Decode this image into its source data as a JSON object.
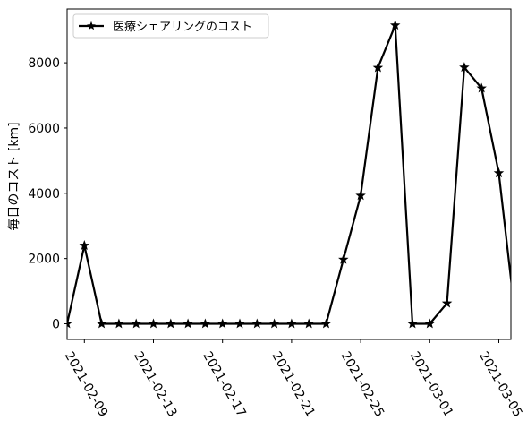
{
  "chart_data": {
    "type": "line",
    "x_start_date": "2021-02-08",
    "x": [
      "2021-02-08",
      "2021-02-09",
      "2021-02-10",
      "2021-02-11",
      "2021-02-12",
      "2021-02-13",
      "2021-02-14",
      "2021-02-15",
      "2021-02-16",
      "2021-02-17",
      "2021-02-18",
      "2021-02-19",
      "2021-02-20",
      "2021-02-21",
      "2021-02-22",
      "2021-02-23",
      "2021-02-24",
      "2021-02-25",
      "2021-02-26",
      "2021-02-27",
      "2021-02-28",
      "2021-03-01",
      "2021-03-02",
      "2021-03-03",
      "2021-03-04",
      "2021-03-05",
      "2021-03-06"
    ],
    "series": [
      {
        "name": "医療シェアリングのコスト",
        "color": "#000000",
        "marker": "star",
        "values": [
          0,
          2400,
          0,
          0,
          0,
          0,
          0,
          0,
          0,
          0,
          0,
          0,
          0,
          0,
          0,
          0,
          1970,
          3930,
          7850,
          9150,
          0,
          0,
          630,
          7860,
          7220,
          4620,
          0
        ]
      }
    ],
    "visible_x_range": [
      "2021-02-08",
      "2021-03-06"
    ],
    "x_ticks": [
      "2021-02-09",
      "2021-02-13",
      "2021-02-17",
      "2021-02-21",
      "2021-02-25",
      "2021-03-01",
      "2021-03-05"
    ],
    "ylabel": "毎日のコスト [km]",
    "xlabel": "",
    "title": "",
    "ylim": [
      -480,
      9650
    ],
    "y_ticks": [
      0,
      2000,
      4000,
      6000,
      8000
    ],
    "grid": false,
    "legend_position": "upper-left"
  }
}
